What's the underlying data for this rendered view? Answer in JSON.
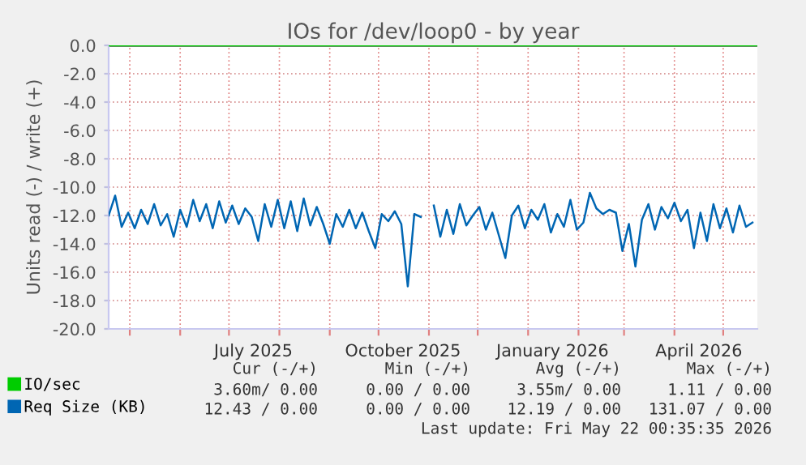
{
  "chart_data": {
    "type": "line",
    "title": "IOs for /dev/loop0 - by year",
    "ylabel": "Units read (-) / write (+)",
    "xlim": [
      "2025-04-18",
      "2026-05-22"
    ],
    "xticks": [
      {
        "value": "2025-05-01",
        "label": null
      },
      {
        "value": "2025-06-01",
        "label": null
      },
      {
        "value": "2025-07-01",
        "label": null
      },
      {
        "value": "2025-07-16",
        "label": "July 2025"
      },
      {
        "value": "2025-08-01",
        "label": null
      },
      {
        "value": "2025-09-01",
        "label": null
      },
      {
        "value": "2025-10-01",
        "label": null
      },
      {
        "value": "2025-10-16",
        "label": "October 2025"
      },
      {
        "value": "2025-11-01",
        "label": null
      },
      {
        "value": "2025-12-01",
        "label": null
      },
      {
        "value": "2026-01-01",
        "label": null
      },
      {
        "value": "2026-01-16",
        "label": "January 2026"
      },
      {
        "value": "2026-02-01",
        "label": null
      },
      {
        "value": "2026-03-01",
        "label": null
      },
      {
        "value": "2026-04-01",
        "label": null
      },
      {
        "value": "2026-04-16",
        "label": "April 2026"
      },
      {
        "value": "2026-05-01",
        "label": null
      }
    ],
    "ylim": [
      -20,
      0
    ],
    "yticks": [
      {
        "value": 0,
        "label": "0.0"
      },
      {
        "value": -2,
        "label": "-2.0"
      },
      {
        "value": -4,
        "label": "-4.0"
      },
      {
        "value": -6,
        "label": "-6.0"
      },
      {
        "value": -8,
        "label": "-8.0"
      },
      {
        "value": -10,
        "label": "-10.0"
      },
      {
        "value": -12,
        "label": "-12.0"
      },
      {
        "value": -14,
        "label": "-14.0"
      },
      {
        "value": -16,
        "label": "-16.0"
      },
      {
        "value": -18,
        "label": "-18.0"
      },
      {
        "value": -20,
        "label": "-20.0"
      }
    ],
    "grid": true,
    "legend": "bottom left",
    "series": [
      {
        "name": "IO/sec",
        "color": "#00cc00",
        "x": [
          "2025-04-18",
          "2026-05-22"
        ],
        "values": [
          0,
          0
        ]
      },
      {
        "name": "Req Size (KB)",
        "color": "#0066b3",
        "x": [
          "2025-04-18",
          "2025-04-22",
          "2025-04-26",
          "2025-04-30",
          "2025-05-04",
          "2025-05-08",
          "2025-05-12",
          "2025-05-16",
          "2025-05-20",
          "2025-05-24",
          "2025-05-28",
          "2025-06-01",
          "2025-06-05",
          "2025-06-09",
          "2025-06-13",
          "2025-06-17",
          "2025-06-21",
          "2025-06-25",
          "2025-06-29",
          "2025-07-03",
          "2025-07-07",
          "2025-07-11",
          "2025-07-15",
          "2025-07-19",
          "2025-07-23",
          "2025-07-27",
          "2025-07-31",
          "2025-08-04",
          "2025-08-08",
          "2025-08-12",
          "2025-08-16",
          "2025-08-20",
          "2025-08-24",
          "2025-08-28",
          "2025-09-01",
          "2025-09-05",
          "2025-09-09",
          "2025-09-13",
          "2025-09-17",
          "2025-09-21",
          "2025-09-25",
          "2025-09-29",
          "2025-10-03",
          "2025-10-07",
          "2025-10-11",
          "2025-10-15",
          "2025-10-19",
          "2025-10-23",
          "2025-10-27",
          "2025-10-31",
          "2025-11-04",
          "2025-11-08",
          "2025-11-12",
          "2025-11-16",
          "2025-11-20",
          "2025-11-24",
          "2025-11-28",
          "2025-12-02",
          "2025-12-06",
          "2025-12-10",
          "2025-12-14",
          "2025-12-18",
          "2025-12-22",
          "2025-12-26",
          "2025-12-30",
          "2026-01-03",
          "2026-01-07",
          "2026-01-11",
          "2026-01-15",
          "2026-01-19",
          "2026-01-23",
          "2026-01-27",
          "2026-01-31",
          "2026-02-04",
          "2026-02-08",
          "2026-02-12",
          "2026-02-16",
          "2026-02-20",
          "2026-02-24",
          "2026-02-28",
          "2026-03-04",
          "2026-03-08",
          "2026-03-12",
          "2026-03-16",
          "2026-03-20",
          "2026-03-24",
          "2026-03-28",
          "2026-04-01",
          "2026-04-05",
          "2026-04-09",
          "2026-04-13",
          "2026-04-17",
          "2026-04-21",
          "2026-04-25",
          "2026-04-29",
          "2026-05-03",
          "2026-05-07",
          "2026-05-11",
          "2026-05-15",
          "2026-05-19"
        ],
        "values": [
          -12.0,
          -10.6,
          -12.8,
          -11.8,
          -12.9,
          -11.6,
          -12.6,
          -11.2,
          -12.7,
          -11.9,
          -13.5,
          -11.6,
          -12.8,
          -10.9,
          -12.4,
          -11.2,
          -12.9,
          -11.0,
          -12.5,
          -11.3,
          -12.6,
          -11.5,
          -12.1,
          -13.8,
          -11.2,
          -12.8,
          -10.9,
          -12.9,
          -11.0,
          -13.1,
          -10.8,
          -12.7,
          -11.4,
          -12.6,
          -14.0,
          -11.9,
          -12.8,
          -11.6,
          -12.9,
          -11.8,
          -13.1,
          -14.3,
          -11.9,
          -12.4,
          -11.7,
          -12.6,
          -17.0,
          -11.9,
          -12.1,
          null,
          -11.3,
          -13.5,
          -11.6,
          -13.3,
          -11.2,
          -12.7,
          -12.0,
          -11.4,
          -13.0,
          -11.8,
          -13.4,
          -15.0,
          -12.0,
          -11.3,
          -12.9,
          -11.6,
          -12.3,
          -11.2,
          -13.2,
          -11.9,
          -12.8,
          -10.9,
          -13.0,
          -12.5,
          -10.4,
          -11.5,
          -11.9,
          -11.6,
          -11.8,
          -14.5,
          -12.6,
          -15.6,
          -12.3,
          -11.2,
          -13.0,
          -11.4,
          -12.2,
          -11.1,
          -12.4,
          -11.6,
          -14.3,
          -11.8,
          -13.8,
          -11.2,
          -12.9,
          -11.5,
          -13.2,
          -11.3,
          -12.8,
          -12.5
        ]
      }
    ],
    "annotations": [
      "Cur (-/+)",
      "Min (-/+)",
      "Avg (-/+)",
      "Max (-/+)",
      "3.60m/ 0.00",
      "0.00 / 0.00",
      "3.55m/ 0.00",
      "1.11 / 0.00",
      "12.43 / 0.00",
      "0.00 / 0.00",
      "12.19 / 0.00",
      "131.07 / 0.00",
      "Last update: Fri May 22 00:35:35 2026"
    ]
  }
}
